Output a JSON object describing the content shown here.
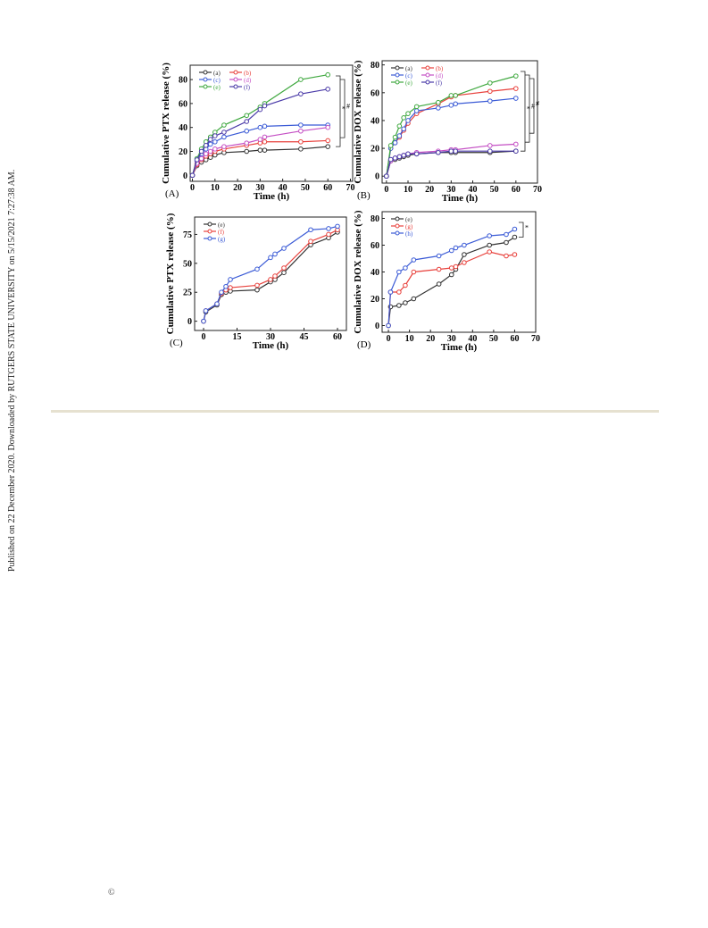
{
  "sidebar": "Published on 22 December 2020. Downloaded by RUTGERS STATE UNIVERSITY on 5/15/2021 7:27:38 AM.",
  "footer": {
    "copyright": "©"
  },
  "chart_data": [
    {
      "type": "line",
      "panel_label": "(A)",
      "y_label": "Cumulative PTX release (%)",
      "x_label": "Time (h)",
      "xlim": [
        -1,
        71
      ],
      "xticks": [
        0,
        10,
        20,
        30,
        40,
        50,
        60,
        70
      ],
      "ylim": [
        -5,
        92
      ],
      "yticks": [
        0,
        20,
        40,
        60,
        80
      ],
      "legend": "upper left",
      "annotations": [
        "*",
        "#"
      ],
      "x": [
        0,
        2,
        4,
        6,
        8,
        10,
        14,
        24,
        30,
        32,
        48,
        60
      ],
      "series": [
        {
          "name": "(a)",
          "color": "#333333",
          "values": [
            0,
            8,
            11,
            13,
            15,
            17,
            19,
            20,
            21,
            21,
            22,
            24
          ]
        },
        {
          "name": "(b)",
          "color": "#e8413c",
          "values": [
            0,
            9,
            13,
            16,
            18,
            20,
            22,
            25,
            27,
            28,
            28,
            29
          ]
        },
        {
          "name": "(c)",
          "color": "#3b5bd6",
          "values": [
            0,
            12,
            18,
            22,
            26,
            28,
            32,
            37,
            40,
            41,
            42,
            42
          ]
        },
        {
          "name": "(d)",
          "color": "#c44fc4",
          "values": [
            0,
            10,
            14,
            18,
            20,
            22,
            24,
            27,
            30,
            32,
            37,
            40
          ]
        },
        {
          "name": "(e)",
          "color": "#3fa83f",
          "values": [
            0,
            14,
            22,
            28,
            32,
            36,
            42,
            50,
            57,
            60,
            80,
            84
          ]
        },
        {
          "name": "(f)",
          "color": "#4a3aa8",
          "values": [
            0,
            13,
            20,
            25,
            30,
            33,
            36,
            45,
            55,
            58,
            68,
            72
          ]
        }
      ]
    },
    {
      "type": "line",
      "panel_label": "(B)",
      "y_label": "Cumulative DOX release (%)",
      "x_label": "Time (h)",
      "xlim": [
        -2,
        70
      ],
      "xticks": [
        0,
        10,
        20,
        30,
        40,
        50,
        60,
        70
      ],
      "ylim": [
        -5,
        83
      ],
      "yticks": [
        0,
        20,
        40,
        60,
        80
      ],
      "legend": "upper left",
      "annotations": [
        "*",
        "#",
        "#"
      ],
      "x": [
        0,
        2,
        4,
        6,
        8,
        10,
        14,
        24,
        30,
        32,
        48,
        60
      ],
      "series": [
        {
          "name": "(a)",
          "color": "#333333",
          "values": [
            0,
            11,
            12,
            13,
            14,
            15,
            16,
            17,
            17,
            17,
            17,
            18
          ]
        },
        {
          "name": "(b)",
          "color": "#e8413c",
          "values": [
            0,
            20,
            24,
            28,
            33,
            38,
            45,
            52,
            57,
            58,
            61,
            63
          ]
        },
        {
          "name": "(c)",
          "color": "#3b5bd6",
          "values": [
            0,
            20,
            24,
            29,
            34,
            40,
            47,
            49,
            51,
            52,
            54,
            56
          ]
        },
        {
          "name": "(d)",
          "color": "#c44fc4",
          "values": [
            0,
            11,
            13,
            14,
            15,
            16,
            17,
            18,
            19,
            19,
            22,
            23
          ]
        },
        {
          "name": "(e)",
          "color": "#3fa83f",
          "values": [
            0,
            22,
            28,
            36,
            42,
            45,
            50,
            53,
            58,
            58,
            67,
            72
          ]
        },
        {
          "name": "(f)",
          "color": "#4a3aa8",
          "values": [
            0,
            12,
            13,
            14,
            15,
            16,
            16,
            17,
            18,
            18,
            18,
            18
          ]
        }
      ]
    },
    {
      "type": "line",
      "panel_label": "(C)",
      "y_label": "Cumulative PTX release (%)",
      "x_label": "Time (h)",
      "xlim": [
        -4,
        64
      ],
      "xticks": [
        0,
        15,
        30,
        45,
        60
      ],
      "ylim": [
        -8,
        90
      ],
      "yticks": [
        0,
        25,
        50,
        75
      ],
      "legend": "upper left",
      "annotations": [],
      "x": [
        0,
        1,
        6,
        8,
        10,
        12,
        24,
        30,
        32,
        36,
        48,
        56,
        60
      ],
      "series": [
        {
          "name": "(e)",
          "color": "#333333",
          "values": [
            0,
            8,
            14,
            23,
            25,
            26,
            27,
            34,
            36,
            42,
            66,
            72,
            77
          ]
        },
        {
          "name": "(f)",
          "color": "#e8413c",
          "values": [
            0,
            9,
            15,
            24,
            27,
            29,
            31,
            36,
            39,
            46,
            69,
            75,
            79
          ]
        },
        {
          "name": "(g)",
          "color": "#3b5bd6",
          "values": [
            0,
            9,
            15,
            25,
            30,
            36,
            45,
            55,
            58,
            63,
            79,
            80,
            82
          ]
        }
      ]
    },
    {
      "type": "line",
      "panel_label": "(D)",
      "y_label": "Cumulative DOX release (%)",
      "x_label": "Time (h)",
      "xlim": [
        -3,
        70
      ],
      "xticks": [
        0,
        10,
        20,
        30,
        40,
        50,
        60,
        70
      ],
      "ylim": [
        -5,
        85
      ],
      "yticks": [
        0,
        20,
        40,
        60,
        80
      ],
      "legend": "upper left",
      "annotations": [
        "*"
      ],
      "x": [
        0,
        1,
        5,
        8,
        12,
        24,
        30,
        32,
        36,
        48,
        56,
        60
      ],
      "series": [
        {
          "name": "(e)",
          "color": "#333333",
          "values": [
            0,
            14,
            15,
            17,
            20,
            31,
            38,
            42,
            53,
            60,
            62,
            66
          ]
        },
        {
          "name": "(g)",
          "color": "#e8413c",
          "values": [
            0,
            25,
            25,
            30,
            40,
            42,
            43,
            44,
            47,
            55,
            52,
            53
          ]
        },
        {
          "name": "(h)",
          "color": "#3b5bd6",
          "values": [
            0,
            25,
            40,
            43,
            49,
            52,
            56,
            58,
            60,
            67,
            68,
            72
          ]
        }
      ]
    }
  ]
}
